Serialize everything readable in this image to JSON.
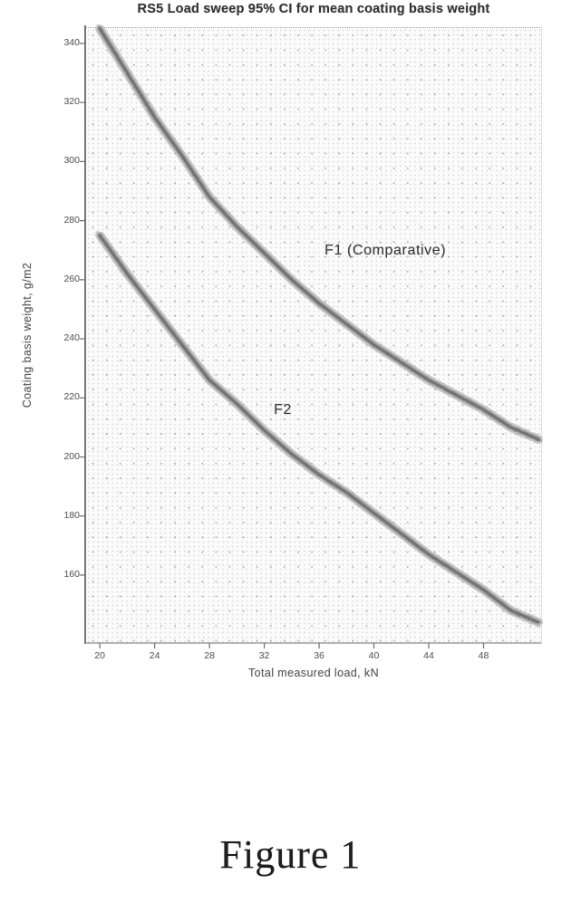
{
  "figure": {
    "caption": "Figure 1"
  },
  "chart_data": {
    "type": "line",
    "title": "RS5 Load sweep 95% CI for mean coating basis weight",
    "xlabel": "Total measured load, kN",
    "ylabel": "Coating basis weight, g/m2",
    "x_ticks": [
      20,
      24,
      28,
      32,
      36,
      40,
      44,
      48
    ],
    "y_ticks": [
      340,
      320,
      300,
      280,
      260,
      240,
      220,
      200,
      180,
      160
    ],
    "xlim": [
      19.0,
      52.2
    ],
    "ylim": [
      137.0,
      345.5
    ],
    "grid": "fine dotted halftone grid over whole plot area",
    "legend": "inline text annotations (no legend box)",
    "x": [
      20,
      22,
      24,
      26,
      28,
      30,
      32,
      34,
      36,
      38,
      40,
      42,
      44,
      46,
      48,
      50,
      52
    ],
    "series": [
      {
        "name": "F1",
        "label": "F1 (Comparative)",
        "style": "wide fuzzy gray band (95% CI around mean)",
        "values": [
          345,
          330,
          315,
          302,
          288,
          278,
          269,
          260,
          252,
          245,
          238,
          232,
          226,
          221,
          216,
          210,
          206
        ]
      },
      {
        "name": "F2",
        "label": "F2",
        "style": "wide fuzzy gray band (95% CI around mean)",
        "values": [
          275,
          262,
          250,
          238,
          226,
          218,
          209,
          201,
          194,
          188,
          181,
          174,
          167,
          161,
          155,
          148,
          144
        ]
      }
    ],
    "annotations": [
      {
        "series": "F1",
        "text": "F1 (Comparative)",
        "x": 36.4,
        "y": 270
      },
      {
        "series": "F2",
        "text": "F2",
        "x": 32.7,
        "y": 216
      }
    ]
  }
}
